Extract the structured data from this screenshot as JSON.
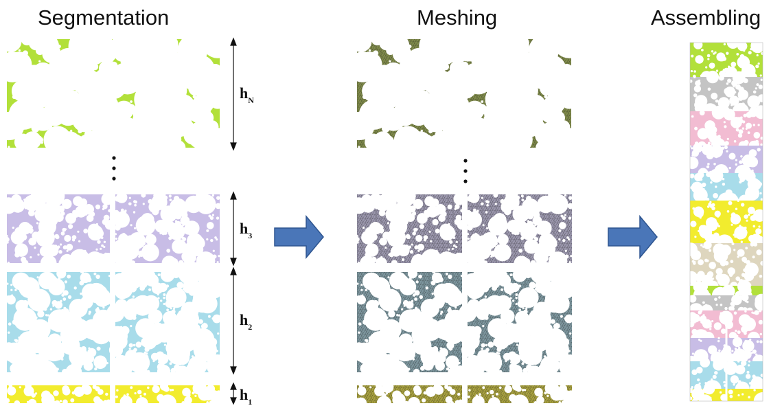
{
  "titles": {
    "segmentation": "Segmentation",
    "meshing": "Meshing",
    "assembling": "Assembling"
  },
  "heights": {
    "hN": {
      "main": "h",
      "sub": "N"
    },
    "h3": {
      "main": "h",
      "sub": "3"
    },
    "h2": {
      "main": "h",
      "sub": "2"
    },
    "h1": {
      "main": "h",
      "sub": "1"
    }
  },
  "colors": {
    "green": "#b2e03a",
    "lavender": "#c8bde6",
    "blue": "#a8dcea",
    "yellow": "#f2ec2e",
    "mesh_green": "#7f8a4a",
    "mesh_lavender": "#9b97ad",
    "mesh_blue": "#7d969e",
    "mesh_yellow": "#a7a040",
    "arrow_fill": "#4a76b8",
    "arrow_stroke": "#2e5590",
    "pink": "#f2bcd2",
    "grey": "#c4c4c4",
    "beige": "#ded6be"
  },
  "assembly_bands": [
    "green",
    "grey",
    "pink",
    "lavender",
    "blue",
    "yellow",
    "beige",
    "green",
    "grey",
    "pink",
    "lavender",
    "blue",
    "yellow"
  ]
}
